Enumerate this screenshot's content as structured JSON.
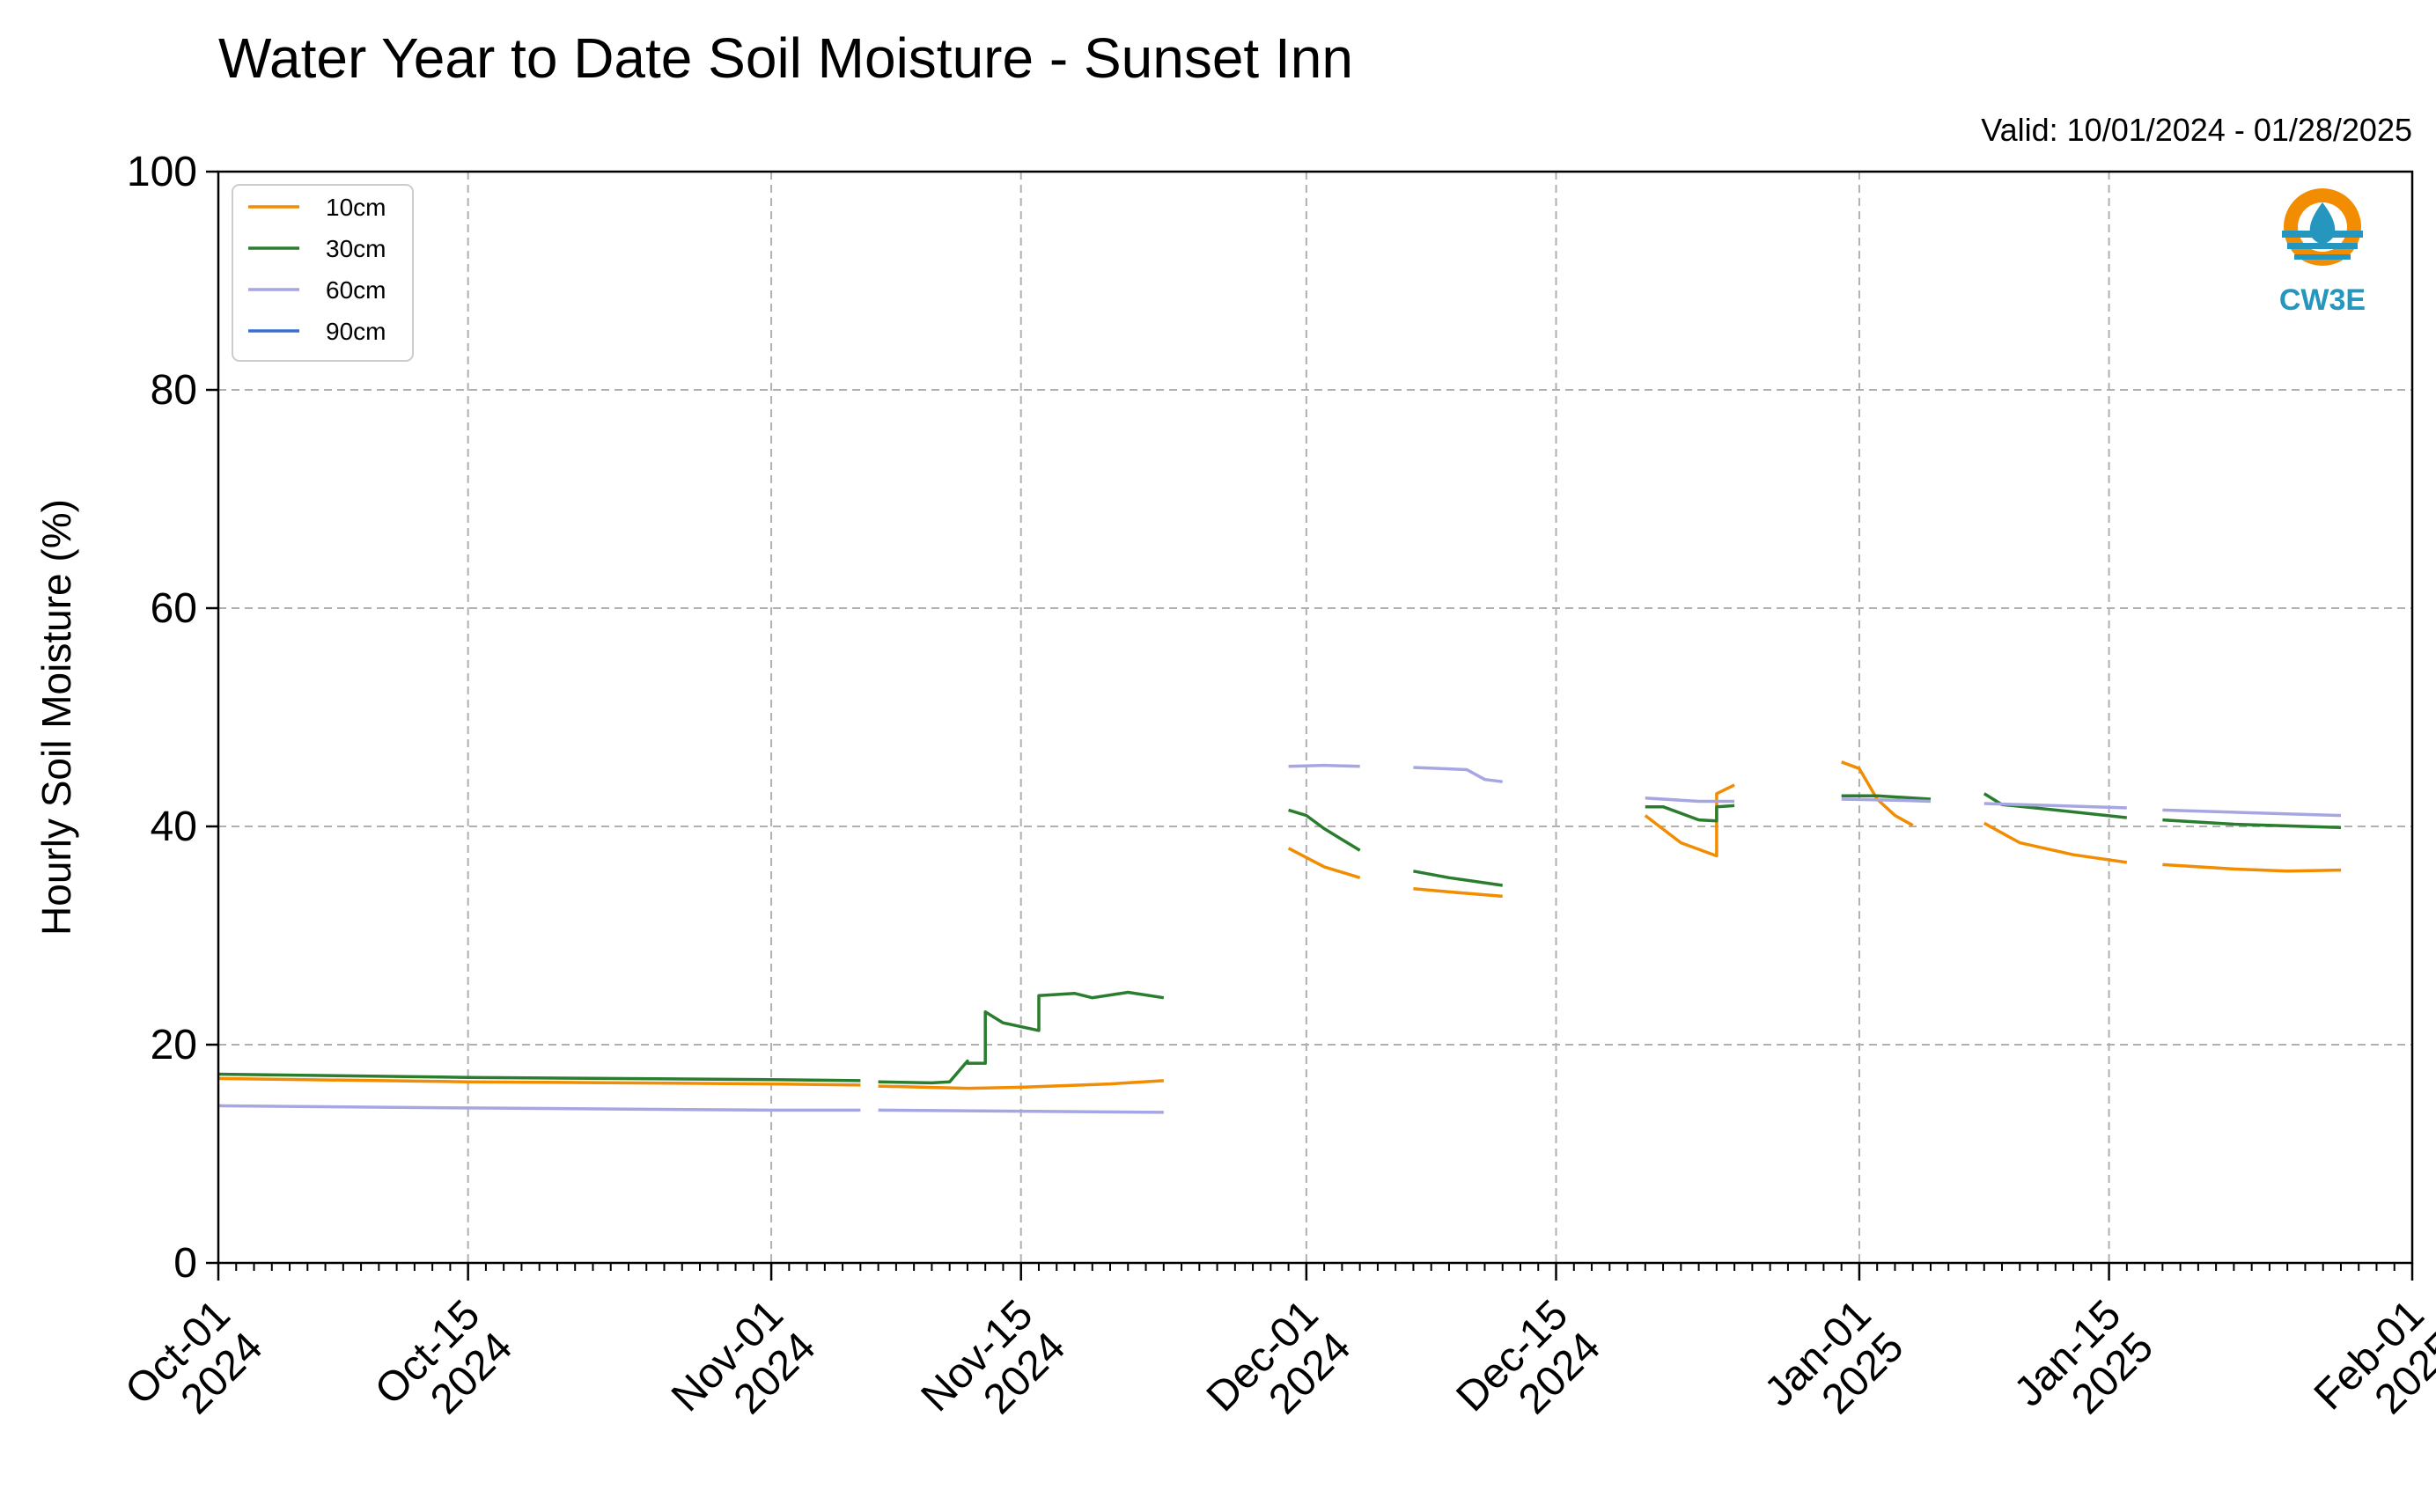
{
  "chart_data": {
    "type": "line",
    "title": "Water Year to Date Soil Moisture - Sunset Inn",
    "subtitle": "Valid: 10/01/2024 - 01/28/2025",
    "ylabel": "Hourly Soil Moisture (%)",
    "xlabel": "",
    "ylim": [
      0,
      100
    ],
    "xlim": [
      "2024-10-01",
      "2025-02-01"
    ],
    "yticks": [
      "0",
      "20",
      "40",
      "60",
      "80",
      "100"
    ],
    "xticks": [
      {
        "date": "2024-10-01",
        "line1": "Oct-01",
        "line2": "2024"
      },
      {
        "date": "2024-10-15",
        "line1": "Oct-15",
        "line2": "2024"
      },
      {
        "date": "2024-11-01",
        "line1": "Nov-01",
        "line2": "2024"
      },
      {
        "date": "2024-11-15",
        "line1": "Nov-15",
        "line2": "2024"
      },
      {
        "date": "2024-12-01",
        "line1": "Dec-01",
        "line2": "2024"
      },
      {
        "date": "2024-12-15",
        "line1": "Dec-15",
        "line2": "2024"
      },
      {
        "date": "2025-01-01",
        "line1": "Jan-01",
        "line2": "2025"
      },
      {
        "date": "2025-01-15",
        "line1": "Jan-15",
        "line2": "2025"
      },
      {
        "date": "2025-02-01",
        "line1": "Feb-01",
        "line2": "2025"
      }
    ],
    "grid": true,
    "legend_position": "top-left",
    "series": [
      {
        "name": "10cm",
        "color": "#f28c00",
        "segments": [
          [
            [
              "2024-10-01",
              16.9
            ],
            [
              "2024-10-15",
              16.6
            ],
            [
              "2024-11-01",
              16.4
            ],
            [
              "2024-11-06",
              16.3
            ]
          ],
          [
            [
              "2024-11-07",
              16.2
            ],
            [
              "2024-11-12",
              16.0
            ],
            [
              "2024-11-15",
              16.1
            ],
            [
              "2024-11-20",
              16.4
            ],
            [
              "2024-11-23",
              16.7
            ]
          ],
          [
            [
              "2024-11-30",
              38.0
            ],
            [
              "2024-12-02",
              36.3
            ],
            [
              "2024-12-04",
              35.3
            ]
          ],
          [
            [
              "2024-12-07",
              34.3
            ],
            [
              "2024-12-09",
              34.0
            ],
            [
              "2024-12-12",
              33.6
            ]
          ],
          [
            [
              "2024-12-20",
              41.0
            ],
            [
              "2024-12-22",
              38.5
            ],
            [
              "2024-12-24",
              37.3
            ],
            [
              "2024-12-24",
              43.0
            ],
            [
              "2024-12-25",
              43.8
            ]
          ],
          [
            [
              "2024-12-31",
              45.9
            ],
            [
              "2025-01-01",
              45.3
            ],
            [
              "2025-01-02",
              42.5
            ],
            [
              "2025-01-03",
              41.0
            ],
            [
              "2025-01-04",
              40.1
            ]
          ],
          [
            [
              "2025-01-08",
              40.3
            ],
            [
              "2025-01-10",
              38.5
            ],
            [
              "2025-01-13",
              37.4
            ],
            [
              "2025-01-16",
              36.7
            ]
          ],
          [
            [
              "2025-01-18",
              36.5
            ],
            [
              "2025-01-22",
              36.1
            ],
            [
              "2025-01-25",
              35.9
            ],
            [
              "2025-01-28",
              36.0
            ]
          ]
        ]
      },
      {
        "name": "30cm",
        "color": "#2a7d2e",
        "segments": [
          [
            [
              "2024-10-01",
              17.3
            ],
            [
              "2024-10-15",
              17.0
            ],
            [
              "2024-11-01",
              16.8
            ],
            [
              "2024-11-06",
              16.7
            ]
          ],
          [
            [
              "2024-11-07",
              16.6
            ],
            [
              "2024-11-10",
              16.5
            ],
            [
              "2024-11-11",
              16.6
            ],
            [
              "2024-11-12",
              18.5
            ],
            [
              "2024-11-12",
              18.3
            ],
            [
              "2024-11-13",
              18.3
            ],
            [
              "2024-11-13",
              23.0
            ],
            [
              "2024-11-14",
              22.0
            ],
            [
              "2024-11-16",
              21.3
            ],
            [
              "2024-11-16",
              24.5
            ],
            [
              "2024-11-18",
              24.7
            ],
            [
              "2024-11-19",
              24.3
            ],
            [
              "2024-11-21",
              24.8
            ],
            [
              "2024-11-23",
              24.3
            ]
          ],
          [
            [
              "2024-11-30",
              41.5
            ],
            [
              "2024-12-01",
              41.0
            ],
            [
              "2024-12-02",
              39.8
            ],
            [
              "2024-12-04",
              37.8
            ]
          ],
          [
            [
              "2024-12-07",
              35.9
            ],
            [
              "2024-12-09",
              35.3
            ],
            [
              "2024-12-12",
              34.6
            ]
          ],
          [
            [
              "2024-12-20",
              41.8
            ],
            [
              "2024-12-21",
              41.8
            ],
            [
              "2024-12-23",
              40.6
            ],
            [
              "2024-12-24",
              40.5
            ],
            [
              "2024-12-24",
              41.8
            ],
            [
              "2024-12-25",
              41.9
            ]
          ],
          [
            [
              "2024-12-31",
              42.8
            ],
            [
              "2025-01-02",
              42.8
            ],
            [
              "2025-01-05",
              42.5
            ]
          ],
          [
            [
              "2025-01-08",
              43.0
            ],
            [
              "2025-01-09",
              42.0
            ],
            [
              "2025-01-12",
              41.5
            ],
            [
              "2025-01-16",
              40.8
            ]
          ],
          [
            [
              "2025-01-18",
              40.6
            ],
            [
              "2025-01-22",
              40.2
            ],
            [
              "2025-01-28",
              39.9
            ]
          ]
        ]
      },
      {
        "name": "60cm",
        "color": "#a6a6e3",
        "segments": [
          [
            [
              "2024-10-01",
              14.4
            ],
            [
              "2024-10-15",
              14.2
            ],
            [
              "2024-11-01",
              14.0
            ],
            [
              "2024-11-06",
              14.0
            ]
          ],
          [
            [
              "2024-11-07",
              14.0
            ],
            [
              "2024-11-15",
              13.9
            ],
            [
              "2024-11-23",
              13.8
            ]
          ],
          [
            [
              "2024-11-30",
              45.5
            ],
            [
              "2024-12-02",
              45.6
            ],
            [
              "2024-12-04",
              45.5
            ]
          ],
          [
            [
              "2024-12-07",
              45.4
            ],
            [
              "2024-12-10",
              45.2
            ],
            [
              "2024-12-11",
              44.3
            ],
            [
              "2024-12-12",
              44.1
            ]
          ],
          [
            [
              "2024-12-20",
              42.6
            ],
            [
              "2024-12-23",
              42.3
            ],
            [
              "2024-12-25",
              42.3
            ]
          ],
          [
            [
              "2024-12-31",
              42.5
            ],
            [
              "2025-01-03",
              42.4
            ],
            [
              "2025-01-05",
              42.3
            ]
          ],
          [
            [
              "2025-01-08",
              42.1
            ],
            [
              "2025-01-12",
              41.9
            ],
            [
              "2025-01-16",
              41.7
            ]
          ],
          [
            [
              "2025-01-18",
              41.5
            ],
            [
              "2025-01-22",
              41.3
            ],
            [
              "2025-01-28",
              41.0
            ]
          ]
        ]
      },
      {
        "name": "90cm",
        "color": "#3a6fd1",
        "segments": []
      }
    ]
  },
  "logo": {
    "text": "CW3E",
    "ring_color": "#f28c00",
    "drop_color": "#2596be"
  }
}
